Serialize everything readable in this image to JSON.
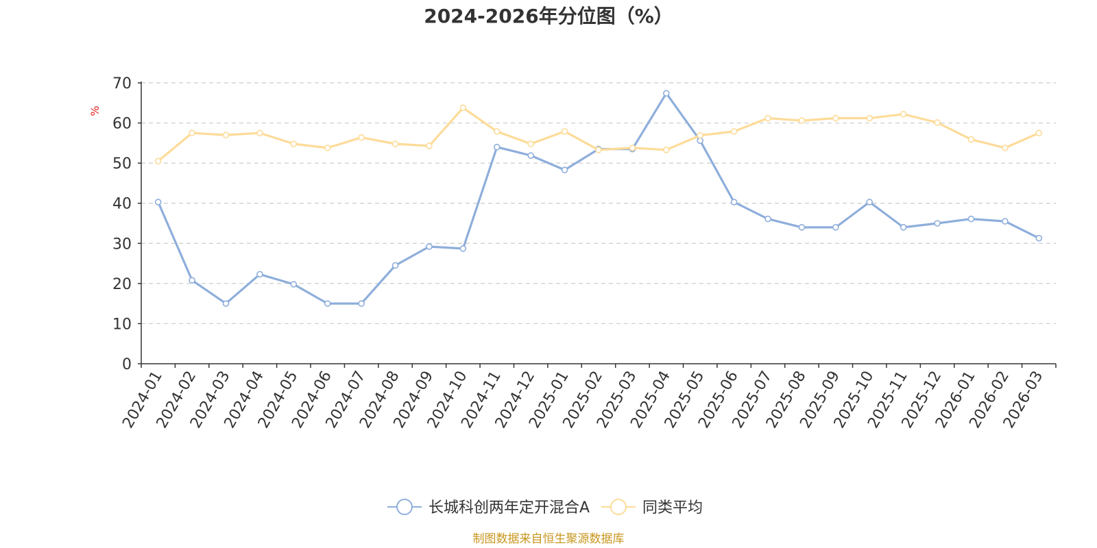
{
  "chart_data": {
    "type": "line",
    "title": "2024-2026年分位图（%）",
    "ylabel": "%",
    "ylim": [
      0,
      70
    ],
    "yticks": [
      "0",
      "10",
      "20",
      "30",
      "40",
      "50",
      "60",
      "70"
    ],
    "grid": true,
    "legend_position": "bottom-center",
    "x": [
      "2024-01",
      "2024-02",
      "2024-03",
      "2024-04",
      "2024-05",
      "2024-06",
      "2024-07",
      "2024-08",
      "2024-09",
      "2024-10",
      "2024-11",
      "2024-12",
      "2025-01",
      "2025-02",
      "2025-03",
      "2025-04",
      "2025-05",
      "2025-06",
      "2025-07",
      "2025-08",
      "2025-09",
      "2025-10",
      "2025-11",
      "2025-12",
      "2026-01",
      "2026-02",
      "2026-03"
    ],
    "series": [
      {
        "name": "长城科创两年定开混合A",
        "color": "#8eaedb",
        "values": [
          40.3,
          20.8,
          15.0,
          22.3,
          19.8,
          15.0,
          15.0,
          24.5,
          29.2,
          28.7,
          54.0,
          51.9,
          48.3,
          53.5,
          53.5,
          67.4,
          55.6,
          40.3,
          36.1,
          34.0,
          34.0,
          40.3,
          34.0,
          35.0,
          36.1,
          35.5,
          31.3
        ]
      },
      {
        "name": "同类平均",
        "color": "#fddb98",
        "values": [
          50.5,
          57.5,
          57.0,
          57.5,
          54.8,
          53.8,
          56.4,
          54.8,
          54.3,
          63.8,
          57.9,
          54.8,
          57.9,
          53.3,
          53.8,
          53.3,
          56.9,
          57.9,
          61.2,
          60.6,
          61.2,
          61.2,
          62.2,
          60.1,
          55.9,
          53.8,
          57.5
        ]
      }
    ]
  },
  "footer": "制图数据来自恒生聚源数据库"
}
